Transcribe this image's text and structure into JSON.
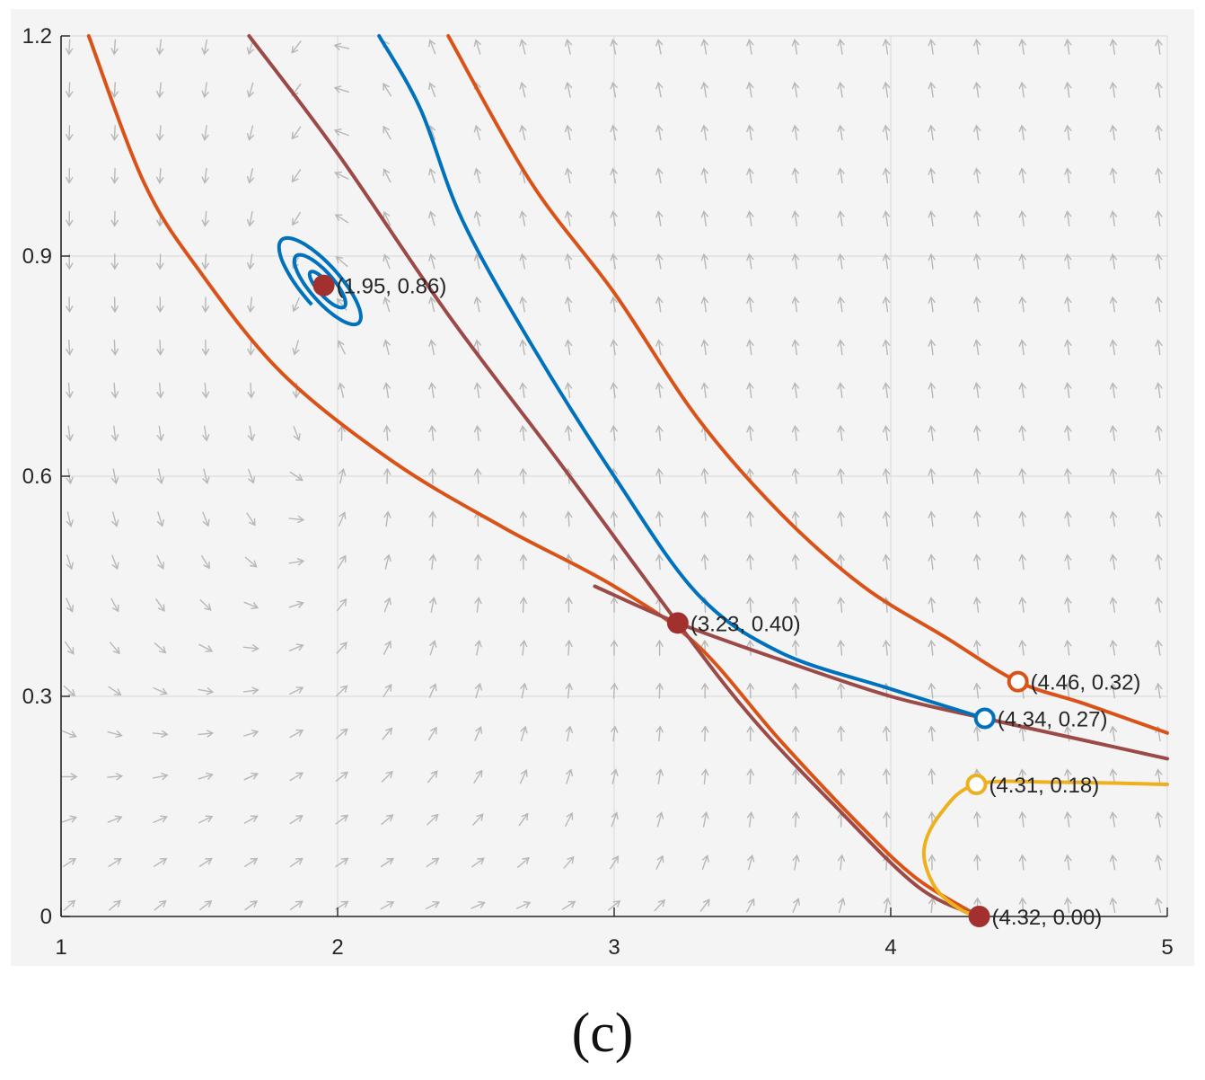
{
  "chart_data": {
    "type": "line",
    "title": "",
    "xlabel": "",
    "ylabel": "",
    "xlim": [
      1,
      5
    ],
    "ylim": [
      0,
      1.2
    ],
    "xticks": [
      "1",
      "2",
      "3",
      "4",
      "5"
    ],
    "yticks": [
      "0",
      "0.3",
      "0.6",
      "0.9",
      "1.2"
    ],
    "grid": true,
    "vector_field": "phase-portrait direction arrows (gray)",
    "equilibria": [
      {
        "x": 1.95,
        "y": 0.86,
        "label": "(1.95, 0.86)",
        "style": "filled",
        "color": "#a2302e"
      },
      {
        "x": 3.23,
        "y": 0.4,
        "label": "(3.23, 0.40)",
        "style": "filled",
        "color": "#a2302e"
      },
      {
        "x": 4.32,
        "y": 0.0,
        "label": "(4.32, 0.00)",
        "style": "filled",
        "color": "#a2302e"
      }
    ],
    "initial_points": [
      {
        "x": 4.46,
        "y": 0.32,
        "label": "(4.46, 0.32)",
        "style": "open",
        "color": "#d95319"
      },
      {
        "x": 4.34,
        "y": 0.27,
        "label": "(4.34, 0.27)",
        "style": "open",
        "color": "#0072bd"
      },
      {
        "x": 4.31,
        "y": 0.18,
        "label": "(4.31, 0.18)",
        "style": "open",
        "color": "#edb120"
      }
    ],
    "series": [
      {
        "name": "orange-outer",
        "color": "#d95319",
        "points": [
          [
            1.1,
            1.2
          ],
          [
            1.3,
            1.0
          ],
          [
            1.5,
            0.88
          ],
          [
            1.8,
            0.74
          ],
          [
            2.2,
            0.62
          ],
          [
            2.6,
            0.53
          ],
          [
            3.0,
            0.45
          ],
          [
            3.3,
            0.37
          ],
          [
            3.6,
            0.24
          ],
          [
            3.9,
            0.12
          ],
          [
            4.1,
            0.05
          ],
          [
            4.32,
            0.0
          ]
        ]
      },
      {
        "name": "orange-upper",
        "color": "#d95319",
        "points": [
          [
            2.4,
            1.2
          ],
          [
            2.7,
            1.0
          ],
          [
            3.0,
            0.85
          ],
          [
            3.3,
            0.68
          ],
          [
            3.6,
            0.55
          ],
          [
            3.9,
            0.45
          ],
          [
            4.2,
            0.38
          ],
          [
            4.46,
            0.32
          ],
          [
            4.7,
            0.29
          ],
          [
            5.0,
            0.25
          ]
        ]
      },
      {
        "name": "brown-separatrix",
        "color": "#9c4a48",
        "points": [
          [
            1.68,
            1.2
          ],
          [
            2.0,
            1.04
          ],
          [
            2.4,
            0.82
          ],
          [
            2.8,
            0.62
          ],
          [
            3.23,
            0.4
          ],
          [
            3.5,
            0.27
          ],
          [
            3.8,
            0.15
          ],
          [
            4.1,
            0.04
          ],
          [
            4.32,
            0.0
          ]
        ]
      },
      {
        "name": "brown-unstable",
        "color": "#9c4a48",
        "points": [
          [
            2.93,
            0.45
          ],
          [
            3.23,
            0.4
          ],
          [
            3.6,
            0.35
          ],
          [
            4.0,
            0.3
          ],
          [
            4.34,
            0.27
          ],
          [
            4.7,
            0.24
          ],
          [
            5.0,
            0.215
          ]
        ]
      },
      {
        "name": "blue-spiral",
        "color": "#0072bd",
        "points": [
          [
            4.34,
            0.27
          ],
          [
            4.0,
            0.31
          ],
          [
            3.6,
            0.36
          ],
          [
            3.3,
            0.44
          ],
          [
            3.0,
            0.6
          ],
          [
            2.7,
            0.78
          ],
          [
            2.45,
            0.95
          ],
          [
            2.3,
            1.1
          ],
          [
            2.15,
            1.2
          ]
        ]
      },
      {
        "name": "yellow",
        "color": "#edb120",
        "points": [
          [
            5.0,
            0.18
          ],
          [
            4.6,
            0.183
          ],
          [
            4.31,
            0.18
          ],
          [
            4.18,
            0.14
          ],
          [
            4.12,
            0.09
          ],
          [
            4.16,
            0.04
          ],
          [
            4.25,
            0.01
          ],
          [
            4.32,
            0.0
          ]
        ]
      }
    ],
    "spiral": {
      "center": [
        1.95,
        0.86
      ],
      "color": "#0072bd"
    }
  },
  "caption": "(c)"
}
